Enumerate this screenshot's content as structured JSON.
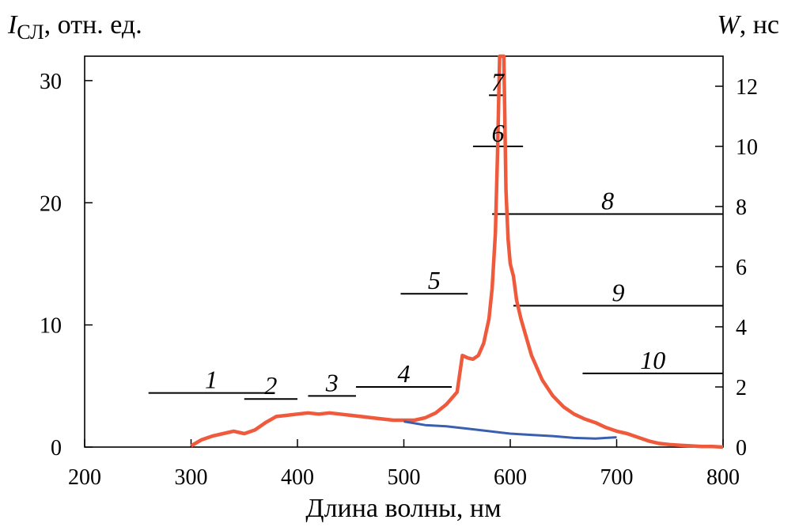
{
  "chart_data": {
    "type": "line",
    "title": "",
    "left_axis_title": {
      "symbol": "I",
      "subscript": "СЛ",
      "rest": ", отн. ед."
    },
    "right_axis_title": {
      "symbol": "W",
      "rest": ", нс"
    },
    "xlabel": "Длина волны, нм",
    "xlim": [
      200,
      800
    ],
    "ylim": [
      0,
      32
    ],
    "y2lim": [
      0,
      13
    ],
    "xticks": [
      200,
      300,
      400,
      500,
      600,
      700,
      800
    ],
    "yticks": [
      0,
      10,
      20,
      30
    ],
    "y2ticks": [
      0,
      2,
      4,
      6,
      8,
      10,
      12
    ],
    "grid": false,
    "legend": "none",
    "series": [
      {
        "axis": "left",
        "color": "#f05a3c",
        "x": [
          300,
          310,
          320,
          330,
          340,
          350,
          360,
          370,
          380,
          390,
          400,
          410,
          420,
          430,
          440,
          450,
          460,
          470,
          480,
          490,
          500,
          510,
          520,
          530,
          540,
          550,
          555,
          560,
          565,
          570,
          575,
          580,
          583,
          586,
          588,
          590,
          591,
          592,
          593,
          594,
          596,
          598,
          600,
          603,
          606,
          610,
          615,
          620,
          630,
          640,
          650,
          660,
          670,
          680,
          690,
          700,
          710,
          720,
          730,
          740,
          750,
          760,
          770,
          780,
          790,
          800
        ],
        "y": [
          0.1,
          0.6,
          0.9,
          1.1,
          1.3,
          1.1,
          1.4,
          2.0,
          2.5,
          2.6,
          2.7,
          2.8,
          2.7,
          2.8,
          2.7,
          2.6,
          2.5,
          2.4,
          2.3,
          2.2,
          2.2,
          2.2,
          2.4,
          2.8,
          3.5,
          4.5,
          7.5,
          7.3,
          7.2,
          7.5,
          8.5,
          10.5,
          13.0,
          17.5,
          24.0,
          32.0,
          32.0,
          32.0,
          32.0,
          32.0,
          21.0,
          17.0,
          15.0,
          14.0,
          12.0,
          10.5,
          9.0,
          7.5,
          5.5,
          4.2,
          3.3,
          2.7,
          2.3,
          2.0,
          1.6,
          1.3,
          1.1,
          0.8,
          0.5,
          0.3,
          0.2,
          0.15,
          0.1,
          0.05,
          0.05,
          0.0
        ]
      },
      {
        "axis": "left",
        "color": "#3a5fb0",
        "x": [
          500,
          520,
          540,
          560,
          580,
          600,
          620,
          640,
          660,
          680,
          700
        ],
        "y": [
          2.1,
          1.8,
          1.7,
          1.5,
          1.3,
          1.1,
          1.0,
          0.9,
          0.75,
          0.7,
          0.8
        ]
      }
    ],
    "segments": [
      {
        "label": "1",
        "x0": 260,
        "x1": 378,
        "w": 1.8
      },
      {
        "label": "2",
        "x0": 350,
        "x1": 400,
        "w": 1.6
      },
      {
        "label": "3",
        "x0": 410,
        "x1": 455,
        "w": 1.7
      },
      {
        "label": "4",
        "x0": 455,
        "x1": 545,
        "w": 2.0
      },
      {
        "label": "5",
        "x0": 497,
        "x1": 560,
        "w": 5.1
      },
      {
        "label": "6",
        "x0": 565,
        "x1": 612,
        "w": 10.0
      },
      {
        "label": "7",
        "x0": 580,
        "x1": 596,
        "w": 11.7
      },
      {
        "label": "8",
        "x0": 583,
        "x1": 800,
        "w": 7.75
      },
      {
        "label": "9",
        "x0": 603,
        "x1": 800,
        "w": 4.7
      },
      {
        "label": "10",
        "x0": 668,
        "x1": 800,
        "w": 2.45
      }
    ]
  }
}
